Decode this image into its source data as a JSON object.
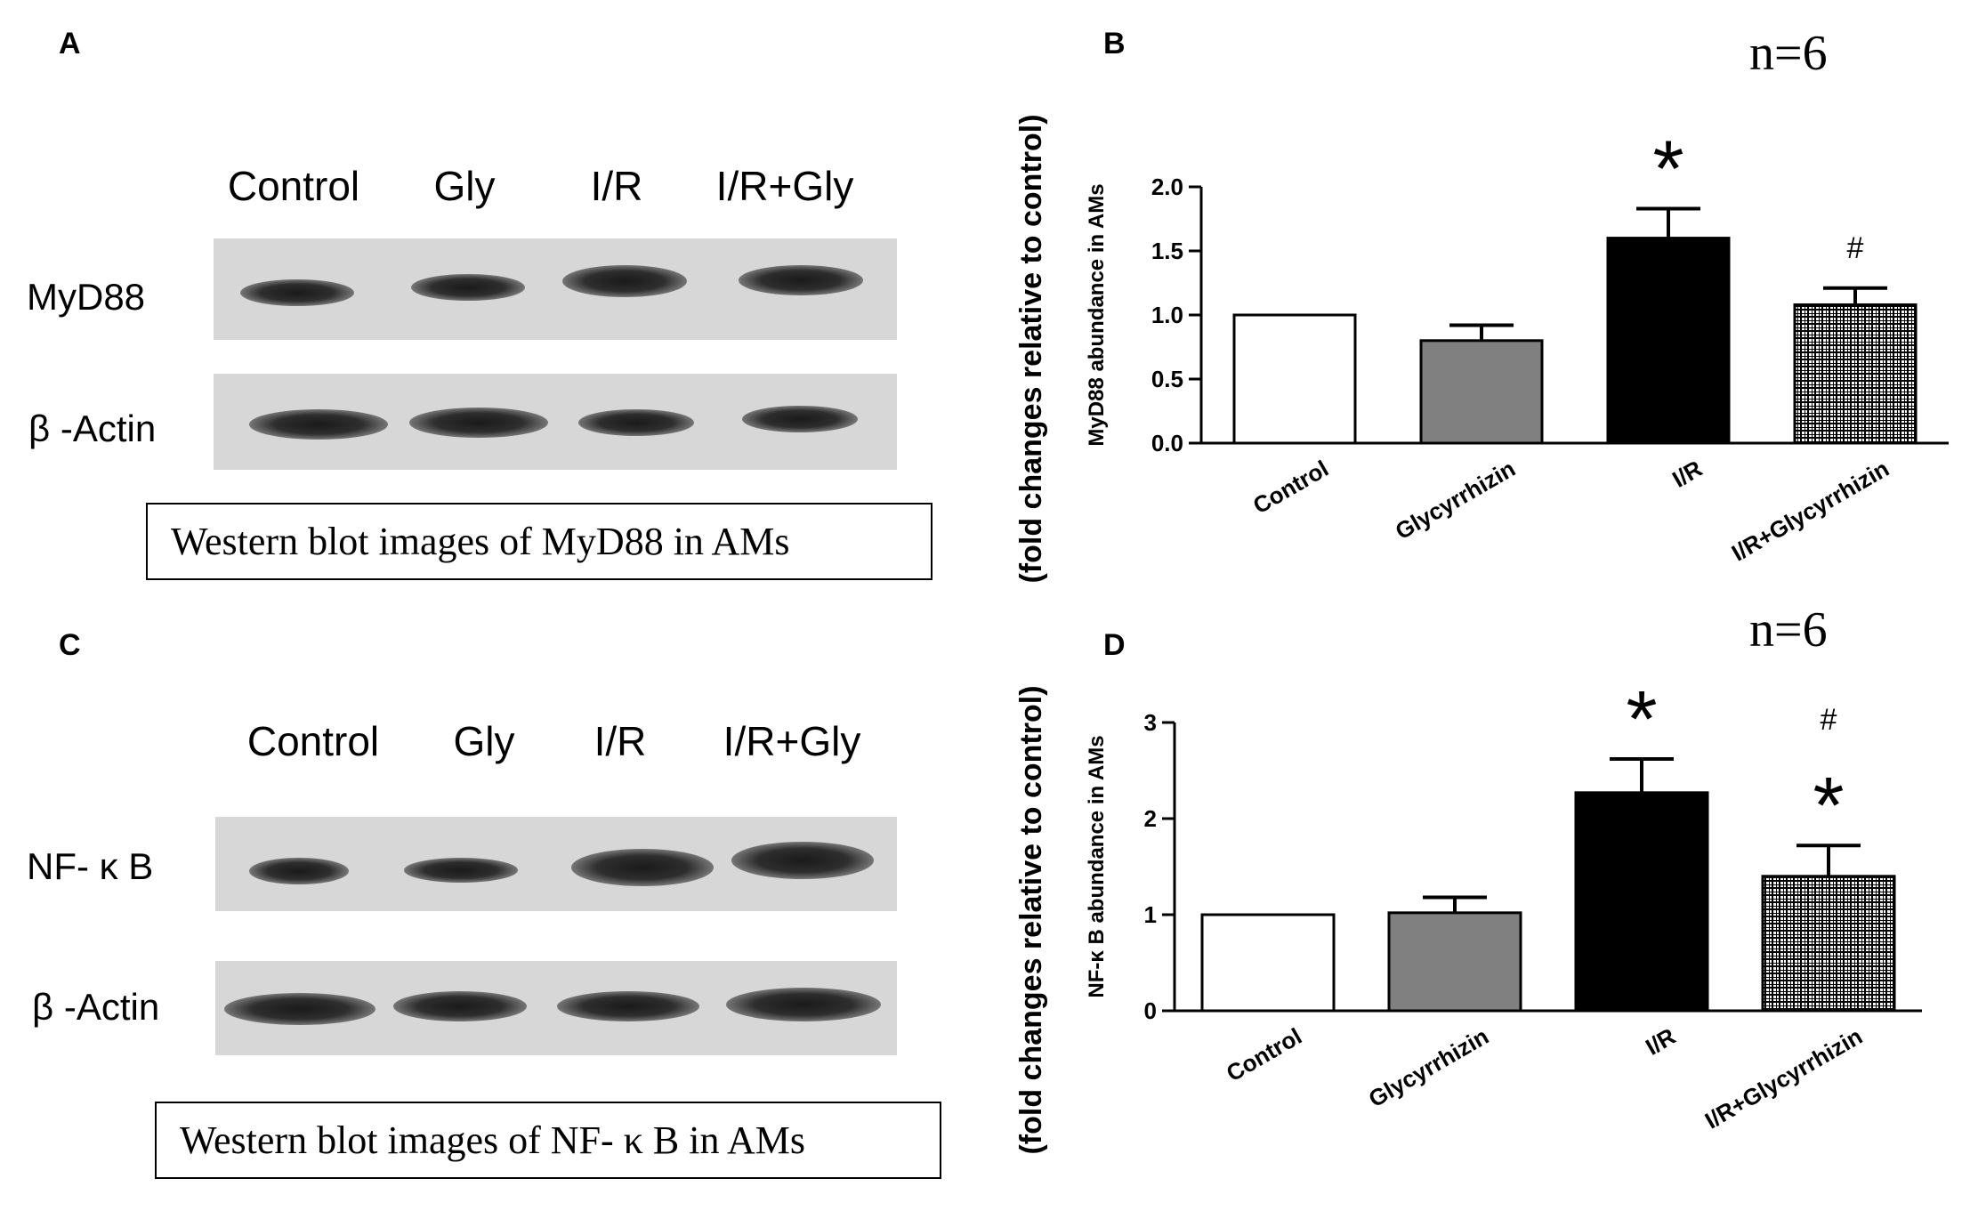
{
  "panels": {
    "A": {
      "letter": "A",
      "lanes": [
        "Control",
        "Gly",
        "I/R",
        "I/R+Gly"
      ],
      "rows": [
        "MyD88",
        "β -Actin"
      ],
      "caption": "Western blot images of MyD88 in AMs"
    },
    "B": {
      "letter": "B",
      "n_label": "n=6"
    },
    "C": {
      "letter": "C",
      "lanes": [
        "Control",
        "Gly",
        "I/R",
        "I/R+Gly"
      ],
      "rows": [
        "NF- κ B",
        "β -Actin"
      ],
      "caption": "Western blot images of NF- κ B in AMs"
    },
    "D": {
      "letter": "D",
      "n_label": "n=6"
    }
  },
  "chart_data": [
    {
      "panel": "B",
      "type": "bar",
      "categories": [
        "Control",
        "Glycyrrhizin",
        "I/R",
        "I/R+Glycyrrhizin"
      ],
      "values": [
        1.0,
        0.8,
        1.6,
        1.08
      ],
      "errors": [
        0,
        0.12,
        0.23,
        0.13
      ],
      "bar_fills": [
        "#ffffff",
        "#808080",
        "#000000",
        "hatch"
      ],
      "annotations": [
        "",
        "",
        "*",
        "#"
      ],
      "ylabel_outer": "(fold changes relative to control)",
      "ylabel_inner": "MyD88 abundance in AMs",
      "ylim": [
        0,
        2.0
      ],
      "yticks": [
        "0.0",
        "0.5",
        "1.0",
        "1.5",
        "2.0"
      ]
    },
    {
      "panel": "D",
      "type": "bar",
      "categories": [
        "Control",
        "Glycyrrhizin",
        "I/R",
        "I/R+Glycyrrhizin"
      ],
      "values": [
        1.0,
        1.02,
        2.27,
        1.4
      ],
      "errors": [
        0,
        0.16,
        0.35,
        0.32
      ],
      "bar_fills": [
        "#ffffff",
        "#808080",
        "#000000",
        "hatch"
      ],
      "annotations": [
        "",
        "",
        "*",
        "#*"
      ],
      "ylabel_outer": "(fold changes relative to control)",
      "ylabel_inner": "NF-κ B abundance in AMs",
      "ylim": [
        0,
        3
      ],
      "yticks": [
        "0",
        "1",
        "2",
        "3"
      ]
    }
  ]
}
